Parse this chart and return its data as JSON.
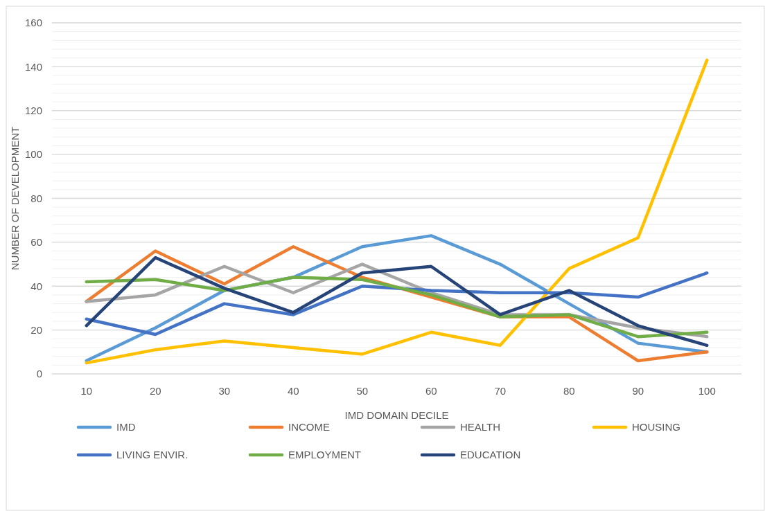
{
  "chart_data": {
    "type": "line",
    "xlabel": "IMD DOMAIN DECILE",
    "ylabel": "NUMBER OF DEVELOPMENT",
    "categories": [
      "10",
      "20",
      "30",
      "40",
      "50",
      "60",
      "70",
      "80",
      "90",
      "100"
    ],
    "ylim": [
      0,
      160
    ],
    "yticks": [
      0,
      {
        "value": 4,
        "label": null
      },
      {
        "value": 8,
        "label": null
      },
      {
        "value": 12,
        "label": null
      },
      {
        "value": 16,
        "label": null
      },
      20,
      {
        "value": 24,
        "label": null
      },
      {
        "value": 28,
        "label": null
      },
      {
        "value": 32,
        "label": null
      },
      {
        "value": 36,
        "label": null
      },
      40,
      {
        "value": 44,
        "label": null
      },
      {
        "value": 48,
        "label": null
      },
      {
        "value": 52,
        "label": null
      },
      {
        "value": 56,
        "label": null
      },
      60,
      {
        "value": 64,
        "label": null
      },
      {
        "value": 68,
        "label": null
      },
      {
        "value": 72,
        "label": null
      },
      {
        "value": 76,
        "label": null
      },
      80,
      {
        "value": 84,
        "label": null
      },
      {
        "value": 88,
        "label": null
      },
      {
        "value": 92,
        "label": null
      },
      {
        "value": 96,
        "label": null
      },
      100,
      {
        "value": 104,
        "label": null
      },
      {
        "value": 108,
        "label": null
      },
      {
        "value": 112,
        "label": null
      },
      {
        "value": 116,
        "label": null
      },
      120,
      {
        "value": 124,
        "label": null
      },
      {
        "value": 128,
        "label": null
      },
      {
        "value": 132,
        "label": null
      },
      {
        "value": 136,
        "label": null
      },
      140,
      {
        "value": 144,
        "label": null
      },
      {
        "value": 148,
        "label": null
      },
      {
        "value": 152,
        "label": null
      },
      {
        "value": 156,
        "label": null
      },
      160
    ],
    "grid": "y",
    "legend": "bottom",
    "marker": "none",
    "line_style": "solid",
    "series": [
      {
        "name": "IMD",
        "color": "#5b9bd5",
        "values": [
          6,
          21,
          38,
          44,
          58,
          63,
          50,
          32,
          14,
          10
        ]
      },
      {
        "name": "INCOME",
        "color": "#ed7d31",
        "values": [
          33,
          56,
          41,
          58,
          44,
          35,
          26,
          26,
          6,
          10
        ]
      },
      {
        "name": "HEALTH",
        "color": "#a5a5a5",
        "values": [
          33,
          36,
          49,
          37,
          50,
          37,
          27,
          27,
          21,
          17
        ]
      },
      {
        "name": "HOUSING",
        "color": "#ffc000",
        "values": [
          5,
          11,
          15,
          12,
          9,
          19,
          13,
          48,
          62,
          143
        ]
      },
      {
        "name": "LIVING ENVIR.",
        "color": "#4472c4",
        "values": [
          25,
          18,
          32,
          27,
          40,
          38,
          37,
          37,
          35,
          46
        ]
      },
      {
        "name": "EMPLOYMENT",
        "color": "#70ad47",
        "values": [
          42,
          43,
          38,
          44,
          43,
          36,
          26,
          27,
          17,
          19
        ]
      },
      {
        "name": "EDUCATION",
        "color": "#264478",
        "values": [
          22,
          53,
          39,
          28,
          46,
          49,
          27,
          38,
          22,
          13
        ]
      }
    ]
  }
}
